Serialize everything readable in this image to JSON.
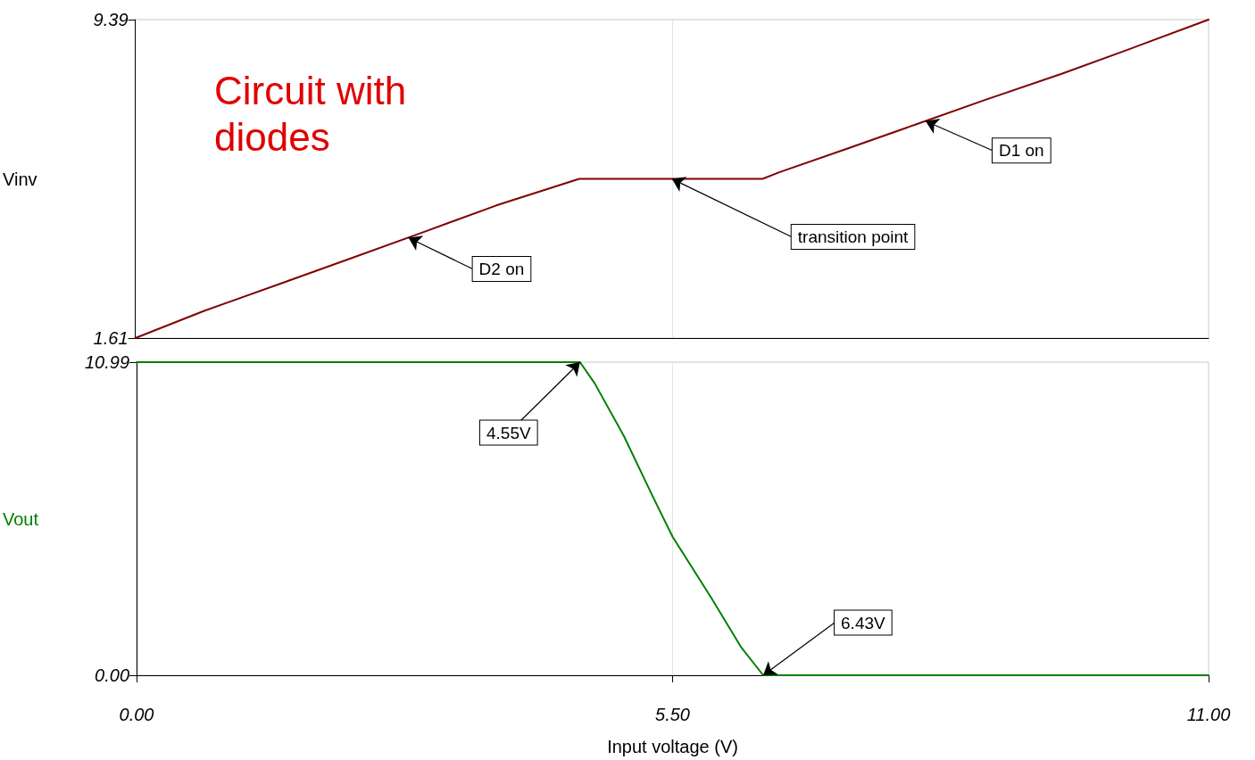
{
  "chart_data": [
    {
      "type": "line",
      "title": "Circuit with diodes",
      "ylabel": "Vinv",
      "xlim": [
        0,
        11
      ],
      "xticks": [
        {
          "value": 0,
          "label": "0.00"
        },
        {
          "value": 5.5,
          "label": "5.50"
        },
        {
          "value": 11,
          "label": "11.00"
        }
      ],
      "ylim": [
        1.61,
        9.39
      ],
      "yticks": [
        {
          "value": 1.61,
          "label": "1.61"
        },
        {
          "value": 9.39,
          "label": "9.39"
        }
      ],
      "tick_labels": "y",
      "grid": "x",
      "marker": "none",
      "series": [
        {
          "color": "#800000",
          "x": [
            0,
            0.7,
            1.5,
            2.2,
            3,
            3.7,
            4.55,
            6.43,
            6.6,
            7.3,
            8,
            8.7,
            9.5,
            10.2,
            11
          ],
          "values": [
            1.61,
            2.27,
            2.95,
            3.55,
            4.24,
            4.85,
            5.5,
            5.5,
            5.66,
            6.24,
            6.83,
            7.42,
            8.07,
            8.68,
            9.39
          ]
        }
      ],
      "annotations": [
        {
          "text": "D2 on",
          "x": 2.8,
          "y": 4.06
        },
        {
          "text": "transition point",
          "x": 5.5,
          "y": 5.5
        },
        {
          "text": "D1 on",
          "x": 8.1,
          "y": 6.91
        }
      ]
    },
    {
      "type": "line",
      "ylabel": "Vout",
      "xlabel": "Input voltage (V)",
      "xlim": [
        0,
        11
      ],
      "xticks": [
        {
          "value": 0,
          "label": "0.00"
        },
        {
          "value": 5.5,
          "label": "5.50"
        },
        {
          "value": 11,
          "label": "11.00"
        }
      ],
      "ylim": [
        0,
        10.99
      ],
      "yticks": [
        {
          "value": 0,
          "label": "0.00"
        },
        {
          "value": 10.99,
          "label": "10.99"
        }
      ],
      "grid": "x",
      "marker": "none",
      "series": [
        {
          "color": "#008000",
          "x": [
            0,
            4.55,
            4.7,
            5.0,
            5.3,
            5.5,
            5.9,
            6.2,
            6.43,
            11
          ],
          "values": [
            10.99,
            10.99,
            10.25,
            8.4,
            6.25,
            4.86,
            2.7,
            1.0,
            0,
            0
          ]
        }
      ],
      "annotations": [
        {
          "text": "4.55V",
          "x": 4.55,
          "y": 10.99
        },
        {
          "text": "6.43V",
          "x": 6.43,
          "y": 0
        }
      ]
    }
  ]
}
